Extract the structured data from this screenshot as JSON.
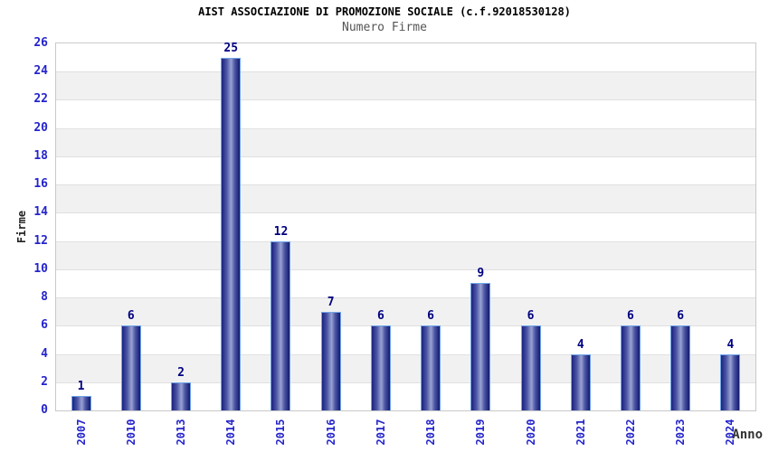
{
  "chart_data": {
    "type": "bar",
    "title": "AIST ASSOCIAZIONE DI PROMOZIONE SOCIALE (c.f.92018530128)",
    "subtitle": "Numero Firme",
    "xlabel": "Anno",
    "ylabel": "Firme",
    "categories": [
      "2007",
      "2010",
      "2013",
      "2014",
      "2015",
      "2016",
      "2017",
      "2018",
      "2019",
      "2020",
      "2021",
      "2022",
      "2023",
      "2024"
    ],
    "values": [
      1,
      6,
      2,
      25,
      12,
      7,
      6,
      6,
      9,
      6,
      4,
      6,
      6,
      4
    ],
    "ylim": [
      0,
      26
    ],
    "ytick_step": 2,
    "yticks": [
      0,
      2,
      4,
      6,
      8,
      10,
      12,
      14,
      16,
      18,
      20,
      22,
      24,
      26
    ],
    "grid": "alternating-horizontal-bands",
    "legend": "none",
    "colors": {
      "tick_label": "#2424cc",
      "value_label": "#000080",
      "bar_dark": "#1a2280",
      "bar_mid": "#4d57a5",
      "bar_light": "#9aa3d2",
      "bar_edge_dark": "#131a70",
      "bar_border": "#6fa4e8",
      "band_gray": "#f1f1f1",
      "band_white": "#ffffff",
      "plot_border": "#c9c9c9",
      "gridline": "#e0e0e0",
      "title_color": "#000000",
      "subtitle_color": "#555555",
      "axis_title_color": "#222222",
      "xlabel_color": "#333333"
    }
  }
}
